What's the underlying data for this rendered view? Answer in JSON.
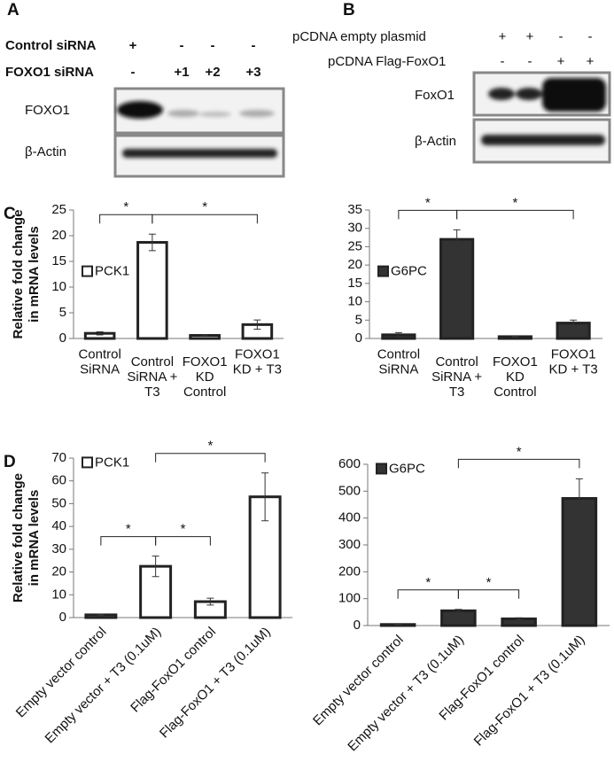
{
  "panels": [
    "A",
    "B",
    "C",
    "D"
  ],
  "blot_a": {
    "rows": [
      {
        "label": "Control siRNA",
        "marks": [
          "+",
          "-",
          "-",
          "-"
        ]
      },
      {
        "label": "FOXO1 siRNA",
        "marks": [
          "-",
          "+1",
          "+2",
          "+3"
        ]
      }
    ],
    "bands": [
      "FOXO1",
      "β-Actin"
    ]
  },
  "blot_b": {
    "rows": [
      {
        "label": "pCDNA empty plasmid",
        "marks": [
          "+",
          "+",
          "-",
          "-"
        ]
      },
      {
        "label": "pCDNA Flag-FoxO1",
        "marks": [
          "-",
          "-",
          "+",
          "+"
        ]
      }
    ],
    "bands": [
      "FoxO1",
      "β-Actin"
    ]
  },
  "chart_data": [
    {
      "type": "bar",
      "y_label": "Relative fold change\nin mRNA levels",
      "legend": "PCK1",
      "color": "#ffffff",
      "categories": [
        "Control\nSiRNA",
        "Control\nSiRNA +\nT3",
        "FOXO1\nKD\nControl",
        "FOXO1\nKD + T3"
      ],
      "values": [
        1.0,
        18.7,
        0.6,
        2.7
      ],
      "errors": [
        0.3,
        1.6,
        0.1,
        0.9
      ],
      "ylim": [
        0,
        25
      ],
      "yticks": [
        0,
        5,
        10,
        15,
        20,
        25
      ],
      "significance": [
        {
          "pair": [
            0,
            1
          ],
          "label": "*"
        },
        {
          "pair": [
            1,
            3
          ],
          "label": "*"
        }
      ]
    },
    {
      "type": "bar",
      "legend": "G6PC",
      "color": "#333333",
      "categories": [
        "Control\nSiRNA",
        "Control\nSiRNA +\nT3",
        "FOXO1\nKD\nControl",
        "FOXO1\nKD + T3"
      ],
      "values": [
        1.0,
        27.0,
        0.5,
        4.2
      ],
      "errors": [
        0.6,
        2.6,
        0.1,
        0.8
      ],
      "ylim": [
        0,
        35
      ],
      "yticks": [
        0,
        5,
        10,
        15,
        20,
        25,
        30,
        35
      ],
      "significance": [
        {
          "pair": [
            0,
            1
          ],
          "label": "*"
        },
        {
          "pair": [
            1,
            3
          ],
          "label": "*"
        }
      ]
    },
    {
      "type": "bar",
      "y_label": "Relative fold change\nin mRNA levels",
      "legend": "PCK1",
      "color": "#ffffff",
      "categories": [
        "Empty vector control",
        "Empty vector + T3 (0.1uM)",
        "Flag-FoxO1 control",
        "Flag-FoxO1 + T3 (0.1uM)"
      ],
      "values": [
        1.2,
        22.5,
        7.0,
        53
      ],
      "errors": [
        0.3,
        4.5,
        1.5,
        10.5
      ],
      "ylim": [
        0,
        70
      ],
      "yticks": [
        0,
        10,
        20,
        30,
        40,
        50,
        60,
        70
      ],
      "significance": [
        {
          "pair": [
            0,
            1
          ],
          "label": "*"
        },
        {
          "pair": [
            1,
            2
          ],
          "label": "*"
        },
        {
          "pair": [
            1,
            3
          ],
          "label": "*"
        }
      ]
    },
    {
      "type": "bar",
      "legend": "G6PC",
      "color": "#333333",
      "categories": [
        "Empty vector control",
        "Empty vector + T3 (0.1uM)",
        "Flag-FoxO1 control",
        "Flag-FoxO1 + T3 (0.1uM)"
      ],
      "values": [
        4,
        55,
        25,
        473
      ],
      "errors": [
        1,
        5,
        4,
        73
      ],
      "ylim": [
        0,
        600
      ],
      "yticks": [
        0,
        100,
        200,
        300,
        400,
        500,
        600
      ],
      "significance": [
        {
          "pair": [
            0,
            1
          ],
          "label": "*"
        },
        {
          "pair": [
            1,
            2
          ],
          "label": "*"
        },
        {
          "pair": [
            1,
            3
          ],
          "label": "*"
        }
      ]
    }
  ]
}
